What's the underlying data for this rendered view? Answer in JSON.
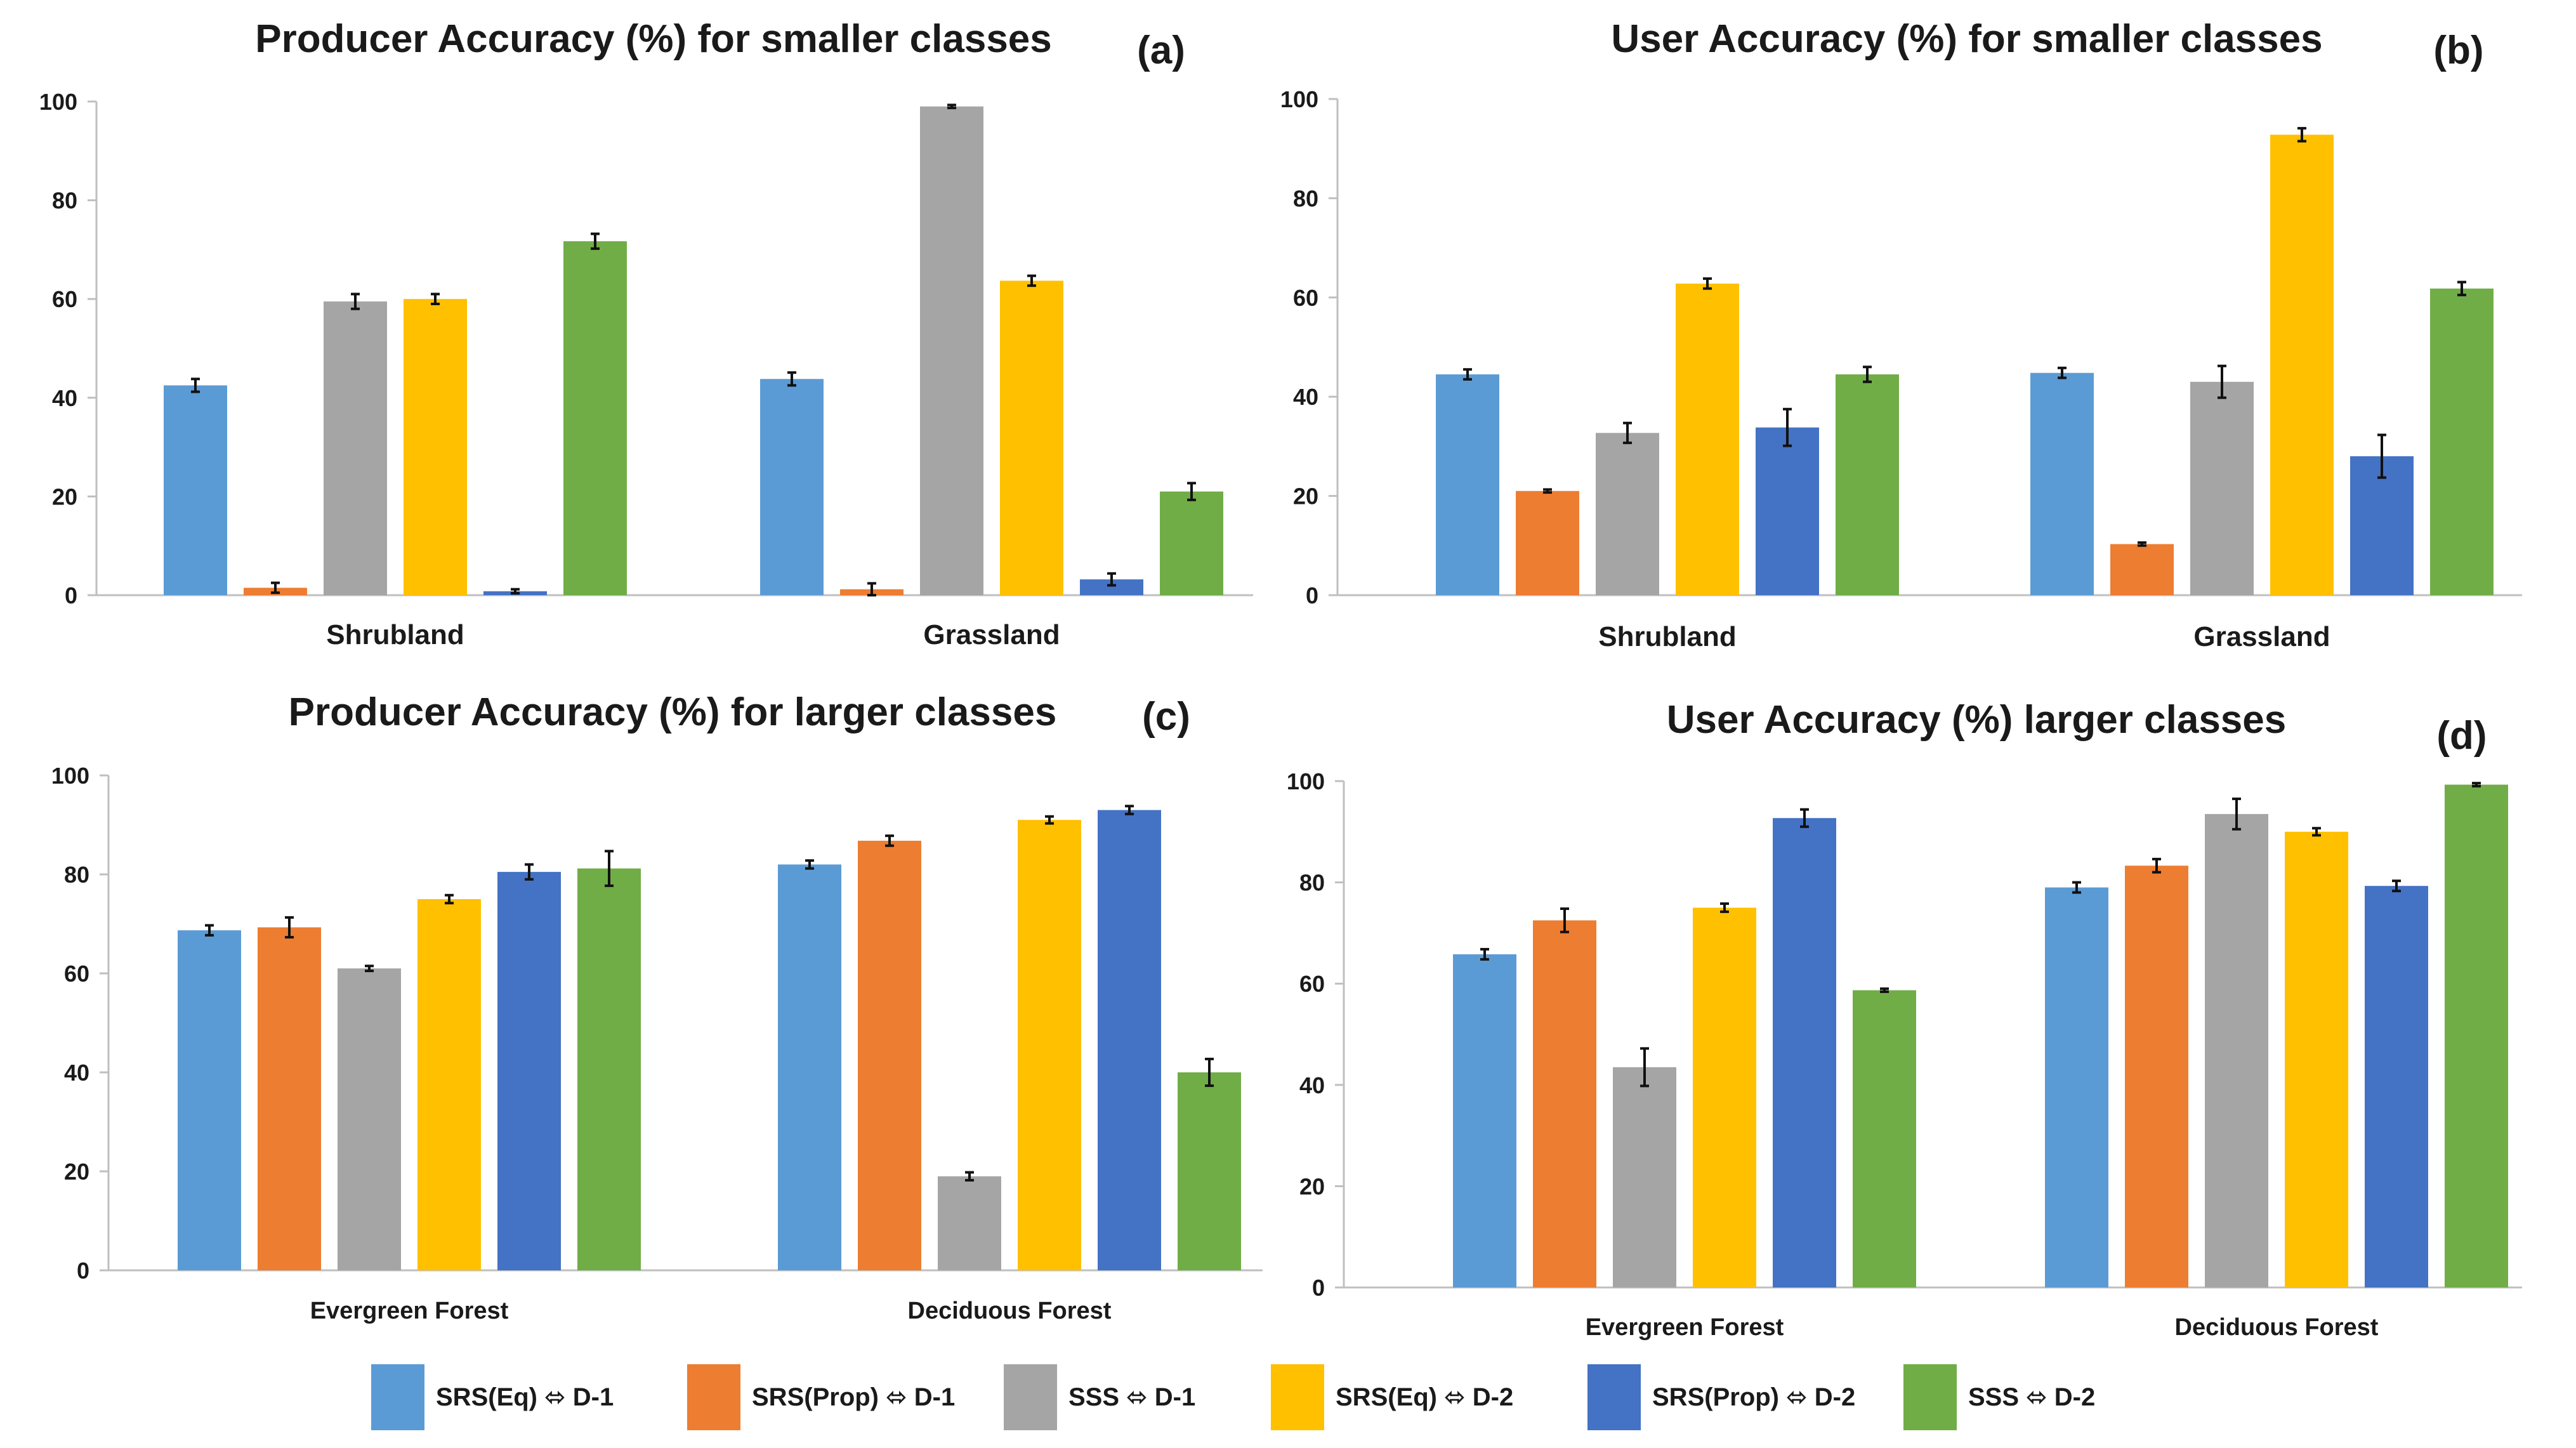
{
  "colors": [
    "#5b9bd5",
    "#ed7d31",
    "#a5a5a5",
    "#ffc000",
    "#4472c4",
    "#70ad47"
  ],
  "legend": [
    "SRS(Eq) ⬄ D-1",
    "SRS(Prop) ⬄ D-1",
    "SSS ⬄ D-1",
    "SRS(Eq) ⬄ D-2",
    "SRS(Prop) ⬄ D-2",
    "SSS ⬄ D-2"
  ],
  "chart_data": [
    {
      "type": "bar",
      "title": "Producer Accuracy (%) for smaller classes",
      "panel_label": "(a)",
      "categories": [
        "Shrubland",
        "Grassland"
      ],
      "ylim": [
        0,
        100
      ],
      "yticks": [
        0,
        20,
        40,
        60,
        80,
        100
      ],
      "grid": false,
      "legend_position": "bottom",
      "series": [
        {
          "name": "SRS(Eq) ⬄ D-1",
          "values": [
            42.5,
            43.8
          ],
          "errors": [
            1.3,
            1.3
          ]
        },
        {
          "name": "SRS(Prop) ⬄ D-1",
          "values": [
            1.5,
            1.2
          ],
          "errors": [
            1.0,
            1.2
          ]
        },
        {
          "name": "SSS ⬄ D-1",
          "values": [
            59.5,
            99.0
          ],
          "errors": [
            1.5,
            0.3
          ]
        },
        {
          "name": "SRS(Eq) ⬄ D-2",
          "values": [
            60.0,
            63.7
          ],
          "errors": [
            1.0,
            1.0
          ]
        },
        {
          "name": "SRS(Prop) ⬄ D-2",
          "values": [
            0.8,
            3.2
          ],
          "errors": [
            0.4,
            1.2
          ]
        },
        {
          "name": "SSS ⬄ D-2",
          "values": [
            71.7,
            21.0
          ],
          "errors": [
            1.5,
            1.7
          ]
        }
      ]
    },
    {
      "type": "bar",
      "title": "User Accuracy (%) for smaller classes",
      "panel_label": "(b)",
      "categories": [
        "Shrubland",
        "Grassland"
      ],
      "ylim": [
        0,
        100
      ],
      "yticks": [
        0,
        20,
        40,
        60,
        80,
        100
      ],
      "grid": false,
      "legend_position": "bottom",
      "series": [
        {
          "name": "SRS(Eq) ⬄ D-1",
          "values": [
            44.5,
            44.8
          ],
          "errors": [
            1.0,
            1.0
          ]
        },
        {
          "name": "SRS(Prop) ⬄ D-1",
          "values": [
            21.0,
            10.3
          ],
          "errors": [
            0.3,
            0.3
          ]
        },
        {
          "name": "SSS ⬄ D-1",
          "values": [
            32.7,
            43.0
          ],
          "errors": [
            2.0,
            3.2
          ]
        },
        {
          "name": "SRS(Eq) ⬄ D-2",
          "values": [
            62.8,
            92.8
          ],
          "errors": [
            1.0,
            1.3
          ]
        },
        {
          "name": "SRS(Prop) ⬄ D-2",
          "values": [
            33.8,
            28.0
          ],
          "errors": [
            3.7,
            4.3
          ]
        },
        {
          "name": "SSS ⬄ D-2",
          "values": [
            44.5,
            61.8
          ],
          "errors": [
            1.5,
            1.3
          ]
        }
      ]
    },
    {
      "type": "bar",
      "title": "Producer Accuracy (%) for larger classes",
      "panel_label": "(c)",
      "categories": [
        "Evergreen Forest",
        "Deciduous Forest"
      ],
      "ylim": [
        0,
        100
      ],
      "yticks": [
        0,
        20,
        40,
        60,
        80,
        100
      ],
      "grid": false,
      "legend_position": "bottom",
      "series": [
        {
          "name": "SRS(Eq) ⬄ D-1",
          "values": [
            68.7,
            82.0
          ],
          "errors": [
            1.0,
            0.8
          ]
        },
        {
          "name": "SRS(Prop) ⬄ D-1",
          "values": [
            69.3,
            86.8
          ],
          "errors": [
            2.0,
            1.0
          ]
        },
        {
          "name": "SSS ⬄ D-1",
          "values": [
            61.0,
            19.0
          ],
          "errors": [
            0.5,
            0.8
          ]
        },
        {
          "name": "SRS(Eq) ⬄ D-2",
          "values": [
            75.0,
            91.0
          ],
          "errors": [
            0.8,
            0.7
          ]
        },
        {
          "name": "SRS(Prop) ⬄ D-2",
          "values": [
            80.5,
            93.0
          ],
          "errors": [
            1.5,
            0.8
          ]
        },
        {
          "name": "SSS ⬄ D-2",
          "values": [
            81.2,
            40.0
          ],
          "errors": [
            3.5,
            2.7
          ]
        }
      ]
    },
    {
      "type": "bar",
      "title": "User Accuracy (%) larger classes",
      "panel_label": "(d)",
      "categories": [
        "Evergreen Forest",
        "Deciduous Forest"
      ],
      "ylim": [
        0,
        100
      ],
      "yticks": [
        0,
        20,
        40,
        60,
        80,
        100
      ],
      "grid": false,
      "legend_position": "bottom",
      "series": [
        {
          "name": "SRS(Eq) ⬄ D-1",
          "values": [
            65.8,
            79.0
          ],
          "errors": [
            1.0,
            1.0
          ]
        },
        {
          "name": "SRS(Prop) ⬄ D-1",
          "values": [
            72.5,
            83.3
          ],
          "errors": [
            2.3,
            1.3
          ]
        },
        {
          "name": "SSS ⬄ D-1",
          "values": [
            43.5,
            93.5
          ],
          "errors": [
            3.7,
            3.0
          ]
        },
        {
          "name": "SRS(Eq) ⬄ D-2",
          "values": [
            75.0,
            90.0
          ],
          "errors": [
            0.8,
            0.7
          ]
        },
        {
          "name": "SRS(Prop) ⬄ D-2",
          "values": [
            92.7,
            79.3
          ],
          "errors": [
            1.7,
            1.0
          ]
        },
        {
          "name": "SSS ⬄ D-2",
          "values": [
            58.7,
            99.3
          ],
          "errors": [
            0.3,
            0.3
          ]
        }
      ]
    }
  ]
}
